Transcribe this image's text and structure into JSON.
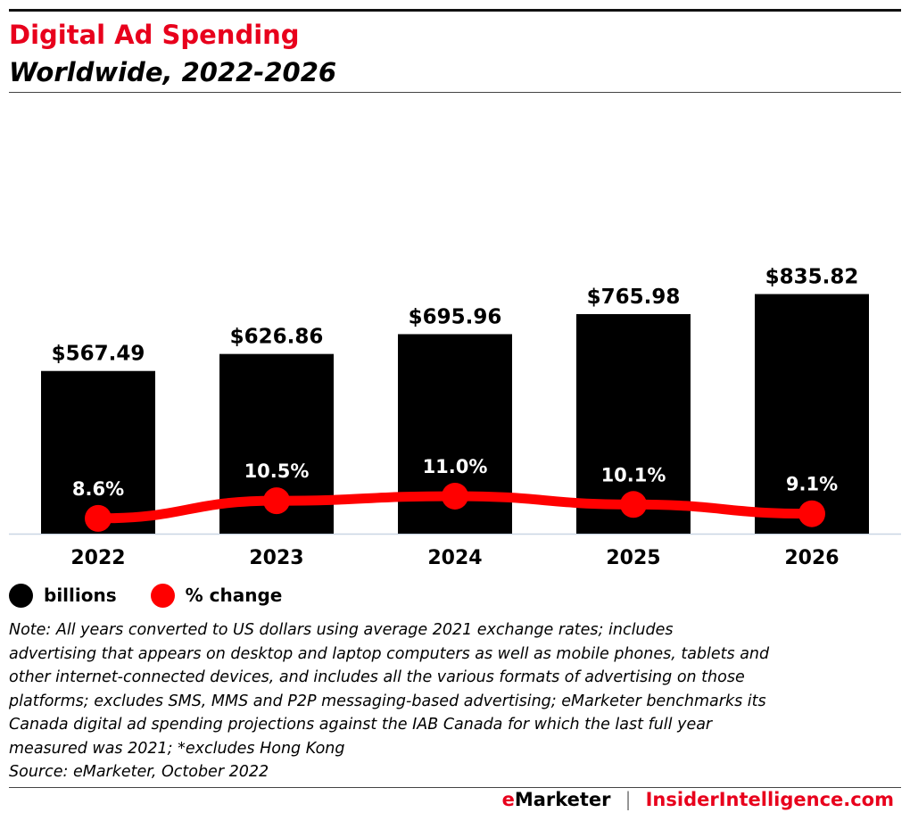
{
  "header": {
    "title": "Digital Ad Spending",
    "subtitle": "Worldwide, 2022-2026"
  },
  "legend": [
    {
      "label": "billions",
      "color": "#000000"
    },
    {
      "label": "% change",
      "color": "#ff0000"
    }
  ],
  "chart_data": {
    "type": "bar",
    "title": "Digital Ad Spending",
    "subtitle": "Worldwide, 2022-2026",
    "categories": [
      "2022",
      "2023",
      "2024",
      "2025",
      "2026"
    ],
    "series": [
      {
        "name": "billions",
        "type": "bar",
        "color": "#000000",
        "values": [
          567.49,
          626.86,
          695.96,
          765.98,
          835.82
        ],
        "labels": [
          "$567.49",
          "$626.86",
          "$695.96",
          "$765.98",
          "$835.82"
        ]
      },
      {
        "name": "% change",
        "type": "line",
        "color": "#ff0000",
        "values": [
          8.6,
          10.5,
          11.0,
          10.1,
          9.1
        ],
        "labels": [
          "8.6%",
          "10.5%",
          "11.0%",
          "10.1%",
          "9.1%"
        ]
      }
    ],
    "grid": false,
    "legend_position": "bottom-left"
  },
  "notes": {
    "lines": [
      "Note: All years converted to US dollars using average 2021 exchange rates; includes",
      "advertising that appears on desktop and laptop computers as well as mobile phones, tablets and",
      "other internet-connected devices, and includes all the various formats of advertising on those",
      "platforms; excludes SMS, MMS and P2P messaging-based advertising; eMarketer benchmarks its",
      "Canada digital ad spending projections against the IAB Canada for which the last full year",
      "measured was 2021; *excludes Hong Kong"
    ],
    "source": "Source: eMarketer, October 2022"
  },
  "footer": {
    "brand_e": "e",
    "brand_rest": "Marketer",
    "separator": "|",
    "site": "InsiderIntelligence.com"
  }
}
